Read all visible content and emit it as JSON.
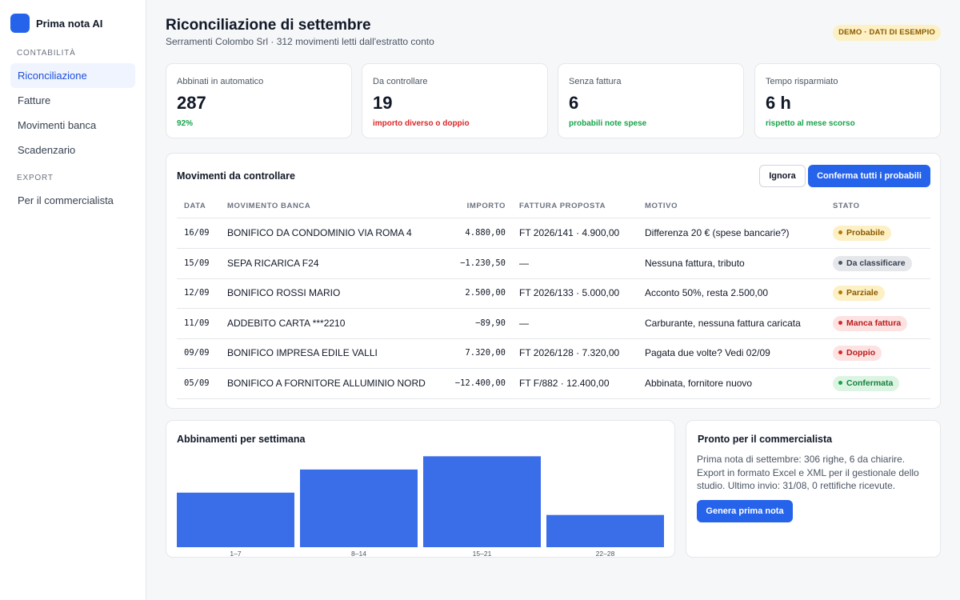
{
  "app": {
    "name": "Prima nota AI",
    "logo_color": "#2563eb"
  },
  "sidebar": {
    "sections": [
      {
        "title": "CONTABILITÀ",
        "items": [
          {
            "label": "Riconciliazione",
            "active": true
          },
          {
            "label": "Fatture",
            "active": false
          },
          {
            "label": "Movimenti banca",
            "active": false
          },
          {
            "label": "Scadenzario",
            "active": false
          }
        ]
      },
      {
        "title": "EXPORT",
        "items": [
          {
            "label": "Per il commercialista",
            "active": false
          }
        ]
      }
    ]
  },
  "header": {
    "title": "Riconciliazione di settembre",
    "subtitle": "Serramenti Colombo Srl · 312 movimenti letti dall'estratto conto",
    "badge": "DEMO · DATI DI ESEMPIO"
  },
  "kpis": [
    {
      "label": "Abbinati in automatico",
      "value": "287",
      "note": "92%",
      "tone": "green"
    },
    {
      "label": "Da controllare",
      "value": "19",
      "note": "importo diverso o doppio",
      "tone": "red"
    },
    {
      "label": "Senza fattura",
      "value": "6",
      "note": "probabili note spese",
      "tone": "green"
    },
    {
      "label": "Tempo risparmiato",
      "value": "6 h",
      "note": "rispetto al mese scorso",
      "tone": "green"
    }
  ],
  "movements": {
    "title": "Movimenti da controllare",
    "ignore_label": "Ignora",
    "confirm_label": "Conferma tutti i probabili",
    "columns": [
      "DATA",
      "MOVIMENTO BANCA",
      "IMPORTO",
      "FATTURA PROPOSTA",
      "MOTIVO",
      "STATO"
    ],
    "rows": [
      {
        "date": "16/09",
        "movement": "BONIFICO DA CONDOMINIO VIA ROMA 4",
        "amount": "4.880,00",
        "invoice": "FT 2026/141 · 4.900,00",
        "reason": "Differenza 20 € (spese bancarie?)",
        "status": "Probabile",
        "status_tone": "amber"
      },
      {
        "date": "15/09",
        "movement": "SEPA RICARICA F24",
        "amount": "−1.230,50",
        "invoice": "—",
        "reason": "Nessuna fattura, tributo",
        "status": "Da classificare",
        "status_tone": "gray"
      },
      {
        "date": "12/09",
        "movement": "BONIFICO ROSSI MARIO",
        "amount": "2.500,00",
        "invoice": "FT 2026/133 · 5.000,00",
        "reason": "Acconto 50%, resta 2.500,00",
        "status": "Parziale",
        "status_tone": "amber"
      },
      {
        "date": "11/09",
        "movement": "ADDEBITO CARTA ***2210",
        "amount": "−89,90",
        "invoice": "—",
        "reason": "Carburante, nessuna fattura caricata",
        "status": "Manca fattura",
        "status_tone": "red"
      },
      {
        "date": "09/09",
        "movement": "BONIFICO IMPRESA EDILE VALLI",
        "amount": "7.320,00",
        "invoice": "FT 2026/128 · 7.320,00",
        "reason": "Pagata due volte? Vedi 02/09",
        "status": "Doppio",
        "status_tone": "red"
      },
      {
        "date": "05/09",
        "movement": "BONIFICO A FORNITORE ALLUMINIO NORD",
        "amount": "−12.400,00",
        "invoice": "FT F/882 · 12.400,00",
        "reason": "Abbinata, fornitore nuovo",
        "status": "Confermata",
        "status_tone": "green"
      }
    ]
  },
  "status_colors": {
    "amber": {
      "bg": "#fdf0c4",
      "fg": "#8a5a00",
      "dot": "#b77900"
    },
    "gray": {
      "bg": "#e5e7eb",
      "fg": "#374151",
      "dot": "#4b5563"
    },
    "red": {
      "bg": "#fde2e2",
      "fg": "#b91c1c",
      "dot": "#dc2626"
    },
    "green": {
      "bg": "#dcf5e3",
      "fg": "#15803d",
      "dot": "#16a34a"
    }
  },
  "chart_data": {
    "type": "bar",
    "title": "Abbinamenti per settimana",
    "categories": [
      "1–7",
      "8–14",
      "15–21",
      "22–28"
    ],
    "values": [
      66,
      94,
      110,
      39
    ],
    "ylim": [
      0,
      120
    ],
    "bar_color": "#3a6ee8",
    "grid": false,
    "xlabel": "",
    "ylabel": ""
  },
  "export_card": {
    "title": "Pronto per il commercialista",
    "text": "Prima nota di settembre: 306 righe, 6 da chiarire. Export in formato Excel e XML per il gestionale dello studio. Ultimo invio: 31/08, 0 rettifiche ricevute.",
    "button_label": "Genera prima nota"
  }
}
